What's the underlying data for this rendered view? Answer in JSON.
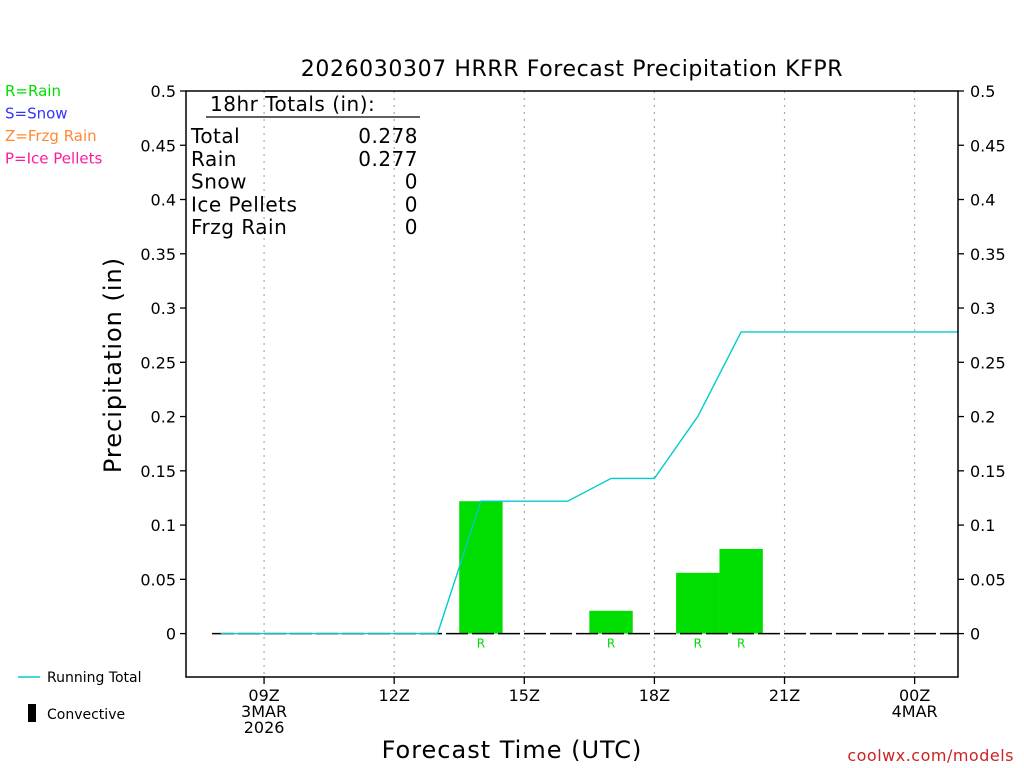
{
  "legend_types": [
    {
      "label": "R=Rain",
      "color": "#00dd00"
    },
    {
      "label": "S=Snow",
      "color": "#3333ff"
    },
    {
      "label": "Z=Frzg Rain",
      "color": "#ff8833"
    },
    {
      "label": "P=Ice Pellets",
      "color": "#ff1a99"
    }
  ],
  "legend_lines": {
    "running_total": "Running Total",
    "convective": "Convective"
  },
  "totals": {
    "header": "18hr Totals (in):",
    "rows": [
      {
        "label": "Total",
        "value": "0.278"
      },
      {
        "label": "Rain",
        "value": "0.277"
      },
      {
        "label": "Snow",
        "value": "0"
      },
      {
        "label": "Ice Pellets",
        "value": "0"
      },
      {
        "label": "Frzg Rain",
        "value": "0"
      }
    ]
  },
  "credit": "coolwx.com/models",
  "colors": {
    "bar": "#00dd00",
    "running_total": "#00cccc",
    "grid": "#aaaaaa",
    "credit": "#cc2222"
  },
  "chart_data": {
    "type": "bar",
    "title": "2026030307 HRRR Forecast Precipitation KFPR",
    "xlabel": "Forecast Time (UTC)",
    "ylabel": "Precipitation (in)",
    "x_unit": "hours (UTC, 3 MAR 2026)",
    "xlim": [
      7.2,
      25
    ],
    "ylim": [
      -0.04,
      0.5
    ],
    "yticks": [
      "0",
      "0.05",
      "0.1",
      "0.15",
      "0.2",
      "0.25",
      "0.3",
      "0.35",
      "0.4",
      "0.45",
      "0.5"
    ],
    "ytick_values": [
      0,
      0.05,
      0.1,
      0.15,
      0.2,
      0.25,
      0.3,
      0.35,
      0.4,
      0.45,
      0.5
    ],
    "xticks": [
      {
        "x": 9,
        "lines": [
          "09Z",
          "3MAR",
          "2026"
        ]
      },
      {
        "x": 12,
        "lines": [
          "12Z"
        ]
      },
      {
        "x": 15,
        "lines": [
          "15Z"
        ]
      },
      {
        "x": 18,
        "lines": [
          "18Z"
        ]
      },
      {
        "x": 21,
        "lines": [
          "21Z"
        ]
      },
      {
        "x": 24,
        "lines": [
          "00Z",
          "4MAR"
        ]
      }
    ],
    "grid_x": [
      9,
      12,
      15,
      18,
      21,
      24
    ],
    "bars": [
      {
        "x0": 13.5,
        "x1": 14.5,
        "value": 0.122,
        "type": "R"
      },
      {
        "x0": 16.5,
        "x1": 17.5,
        "value": 0.021,
        "type": "R"
      },
      {
        "x0": 18.5,
        "x1": 19.5,
        "value": 0.056,
        "type": "R"
      },
      {
        "x0": 19.5,
        "x1": 20.5,
        "value": 0.078,
        "type": "R"
      }
    ],
    "running_total": {
      "x": [
        8,
        9,
        10,
        11,
        12,
        13,
        14,
        15,
        16,
        17,
        18,
        19,
        20,
        21,
        22,
        23,
        24,
        25
      ],
      "y": [
        0,
        0,
        0,
        0,
        0,
        0,
        0.122,
        0.122,
        0.122,
        0.143,
        0.143,
        0.2,
        0.278,
        0.278,
        0.278,
        0.278,
        0.278,
        0.278
      ]
    },
    "baseline": {
      "x0": 7.8,
      "x1": 25
    }
  }
}
